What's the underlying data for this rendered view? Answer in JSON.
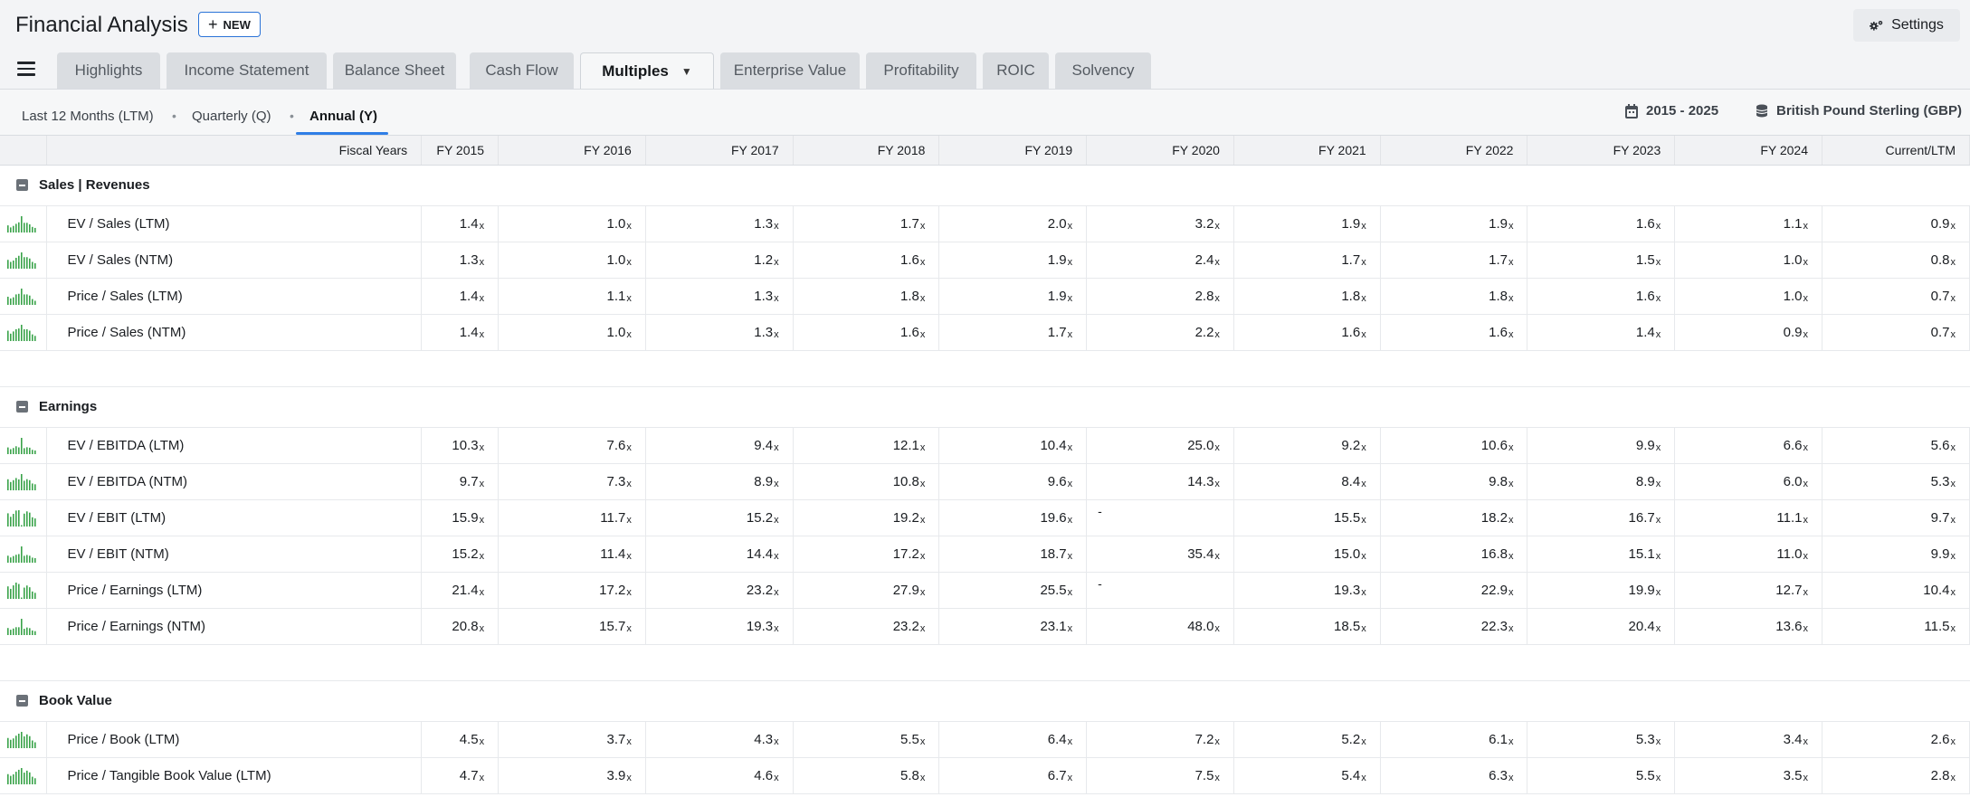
{
  "app": {
    "title": "Financial Analysis",
    "new_label": "NEW",
    "settings_label": "Settings"
  },
  "tabs": [
    {
      "label": "Highlights"
    },
    {
      "label": "Income Statement"
    },
    {
      "label": "Balance Sheet"
    },
    {
      "label": "Cash Flow"
    },
    {
      "label": "Multiples",
      "active": true
    },
    {
      "label": "Enterprise Value"
    },
    {
      "label": "Profitability"
    },
    {
      "label": "ROIC"
    },
    {
      "label": "Solvency"
    }
  ],
  "periods": {
    "ltm": "Last 12 Months (LTM)",
    "quarterly": "Quarterly (Q)",
    "annual": "Annual (Y)",
    "selected": "annual"
  },
  "controls": {
    "date_range": "2015 - 2025",
    "currency": "British Pound Sterling (GBP)"
  },
  "colors": {
    "accent": "#2f7ee6",
    "spark": "#3aa34a"
  },
  "table": {
    "header_label": "Fiscal Years",
    "columns": [
      "FY 2015",
      "FY 2016",
      "FY 2017",
      "FY 2018",
      "FY 2019",
      "FY 2020",
      "FY 2021",
      "FY 2022",
      "FY 2023",
      "FY 2024",
      "Current/LTM"
    ],
    "unit_suffix": "x",
    "sections": [
      {
        "title": "Sales | Revenues",
        "rows": [
          {
            "label": "EV / Sales (LTM)",
            "values": [
              "1.4",
              "1.0",
              "1.3",
              "1.7",
              "2.0",
              "3.2",
              "1.9",
              "1.9",
              "1.6",
              "1.1",
              "0.9"
            ]
          },
          {
            "label": "EV / Sales (NTM)",
            "values": [
              "1.3",
              "1.0",
              "1.2",
              "1.6",
              "1.9",
              "2.4",
              "1.7",
              "1.7",
              "1.5",
              "1.0",
              "0.8"
            ]
          },
          {
            "label": "Price / Sales (LTM)",
            "values": [
              "1.4",
              "1.1",
              "1.3",
              "1.8",
              "1.9",
              "2.8",
              "1.8",
              "1.8",
              "1.6",
              "1.0",
              "0.7"
            ]
          },
          {
            "label": "Price / Sales (NTM)",
            "values": [
              "1.4",
              "1.0",
              "1.3",
              "1.6",
              "1.7",
              "2.2",
              "1.6",
              "1.6",
              "1.4",
              "0.9",
              "0.7"
            ]
          }
        ]
      },
      {
        "title": "Earnings",
        "rows": [
          {
            "label": "EV / EBITDA (LTM)",
            "values": [
              "10.3",
              "7.6",
              "9.4",
              "12.1",
              "10.4",
              "25.0",
              "9.2",
              "10.6",
              "9.9",
              "6.6",
              "5.6"
            ]
          },
          {
            "label": "EV / EBITDA (NTM)",
            "values": [
              "9.7",
              "7.3",
              "8.9",
              "10.8",
              "9.6",
              "14.3",
              "8.4",
              "9.8",
              "8.9",
              "6.0",
              "5.3"
            ]
          },
          {
            "label": "EV / EBIT (LTM)",
            "values": [
              "15.9",
              "11.7",
              "15.2",
              "19.2",
              "19.6",
              "-",
              "15.5",
              "18.2",
              "16.7",
              "11.1",
              "9.7"
            ]
          },
          {
            "label": "EV / EBIT (NTM)",
            "values": [
              "15.2",
              "11.4",
              "14.4",
              "17.2",
              "18.7",
              "35.4",
              "15.0",
              "16.8",
              "15.1",
              "11.0",
              "9.9"
            ]
          },
          {
            "label": "Price / Earnings (LTM)",
            "values": [
              "21.4",
              "17.2",
              "23.2",
              "27.9",
              "25.5",
              "-",
              "19.3",
              "22.9",
              "19.9",
              "12.7",
              "10.4"
            ]
          },
          {
            "label": "Price / Earnings (NTM)",
            "values": [
              "20.8",
              "15.7",
              "19.3",
              "23.2",
              "23.1",
              "48.0",
              "18.5",
              "22.3",
              "20.4",
              "13.6",
              "11.5"
            ]
          }
        ]
      },
      {
        "title": "Book Value",
        "rows": [
          {
            "label": "Price / Book (LTM)",
            "values": [
              "4.5",
              "3.7",
              "4.3",
              "5.5",
              "6.4",
              "7.2",
              "5.2",
              "6.1",
              "5.3",
              "3.4",
              "2.6"
            ]
          },
          {
            "label": "Price / Tangible Book Value (LTM)",
            "values": [
              "4.7",
              "3.9",
              "4.6",
              "5.8",
              "6.7",
              "7.5",
              "5.4",
              "6.3",
              "5.5",
              "3.5",
              "2.8"
            ]
          }
        ]
      }
    ]
  }
}
